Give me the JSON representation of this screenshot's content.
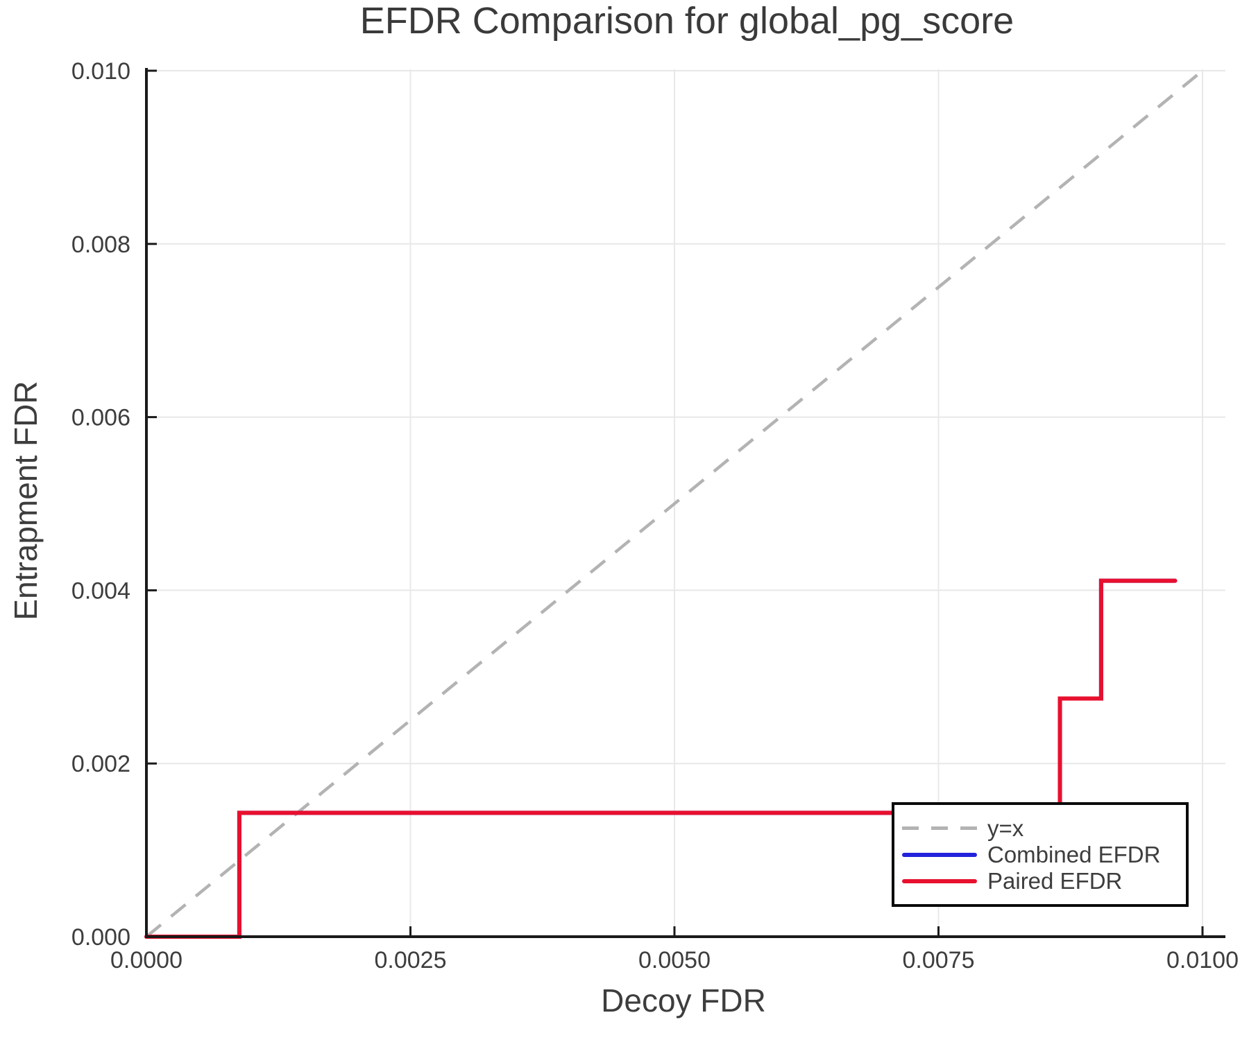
{
  "chart_data": {
    "type": "line",
    "title": "EFDR Comparison for global_pg_score",
    "xlabel": "Decoy FDR",
    "ylabel": "Entrapment FDR",
    "xlim": [
      0,
      0.0102
    ],
    "ylim": [
      0,
      0.01005
    ],
    "grid": true,
    "legend_position": "lower right",
    "x_ticks": [
      {
        "value": 0.0,
        "label": "0.0000"
      },
      {
        "value": 0.0025,
        "label": "0.0025"
      },
      {
        "value": 0.005,
        "label": "0.0050"
      },
      {
        "value": 0.0075,
        "label": "0.0075"
      },
      {
        "value": 0.01,
        "label": "0.0100"
      }
    ],
    "y_ticks": [
      {
        "value": 0.0,
        "label": "0.000"
      },
      {
        "value": 0.002,
        "label": "0.002"
      },
      {
        "value": 0.004,
        "label": "0.004"
      },
      {
        "value": 0.006,
        "label": "0.006"
      },
      {
        "value": 0.008,
        "label": "0.008"
      },
      {
        "value": 0.01,
        "label": "0.010"
      }
    ],
    "reference_line": {
      "label": "y=x",
      "style": "dashed",
      "color": "#b3b3b3",
      "from": [
        0,
        0
      ],
      "to": [
        0.01,
        0.01
      ]
    },
    "series": [
      {
        "name": "Combined EFDR",
        "color": "#2222dd",
        "style": "solid",
        "note": "coincides with Paired EFDR curve (drawn beneath it)",
        "points": [
          [
            0,
            0
          ],
          [
            0.00088,
            0
          ],
          [
            0.00088,
            0.00143
          ],
          [
            0.00865,
            0.00143
          ],
          [
            0.00865,
            0.00275
          ],
          [
            0.00904,
            0.00275
          ],
          [
            0.00904,
            0.00411
          ],
          [
            0.00974,
            0.00411
          ]
        ]
      },
      {
        "name": "Paired EFDR",
        "color": "#e8102e",
        "style": "solid",
        "points": [
          [
            0,
            0
          ],
          [
            0.00088,
            0
          ],
          [
            0.00088,
            0.00143
          ],
          [
            0.00865,
            0.00143
          ],
          [
            0.00865,
            0.00275
          ],
          [
            0.00904,
            0.00275
          ],
          [
            0.00904,
            0.00411
          ],
          [
            0.00974,
            0.00411
          ]
        ]
      }
    ]
  },
  "colors": {
    "background": "#ffffff",
    "grid": "#e8e8e8",
    "spine": "#1a1a1a",
    "tick_label": "#3d3d3d",
    "title": "#3a3a3a",
    "axis_label": "#3d3d3d",
    "legend_border": "#0a0a0a"
  }
}
